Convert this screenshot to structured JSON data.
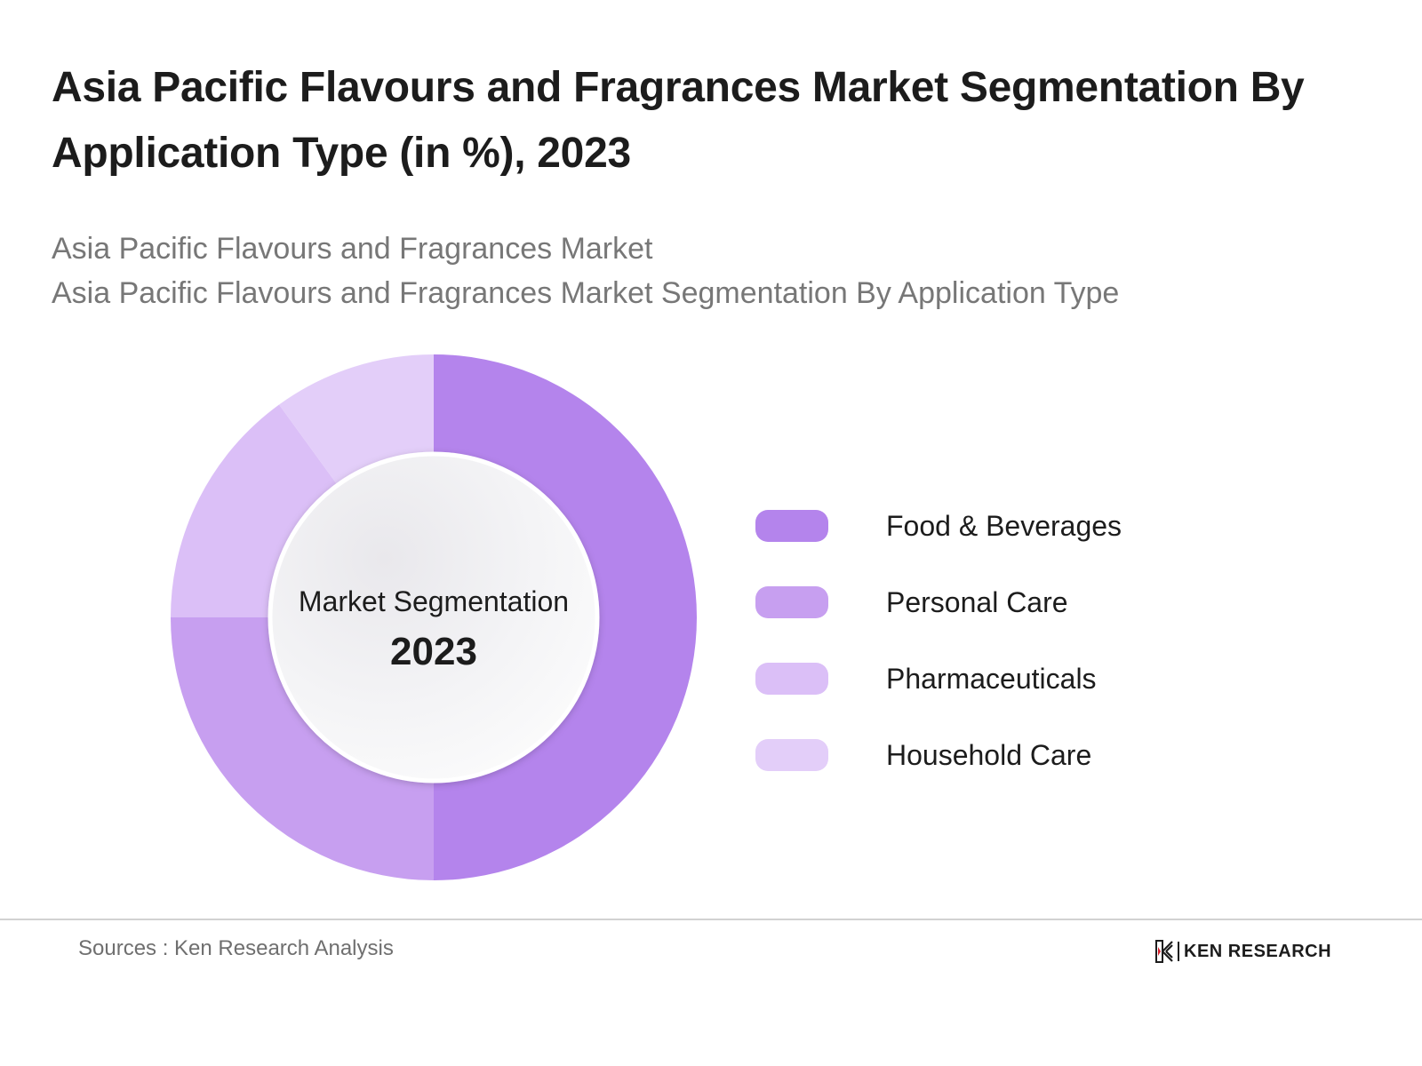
{
  "title": "Asia Pacific Flavours and Fragrances Market Segmentation By Application Type (in %), 2023",
  "subtitle_lines": [
    "Asia Pacific Flavours and Fragrances Market",
    "Asia Pacific Flavours and Fragrances Market Segmentation By Application Type"
  ],
  "center_label": {
    "line1": "Market Segmentation",
    "line2": "2023"
  },
  "colors": {
    "food_beverages": "#b484ec",
    "personal_care": "#c79ff0",
    "pharmaceuticals": "#dbbff7",
    "household_care": "#e3cef9",
    "divider": "#d2d2d2"
  },
  "chart_data": {
    "type": "pie",
    "variant": "donut",
    "categories": [
      "Food & Beverages",
      "Personal Care",
      "Pharmaceuticals",
      "Household Care"
    ],
    "values": [
      50,
      25,
      15,
      10
    ],
    "unit": "%",
    "legend_position": "right"
  },
  "legend": [
    {
      "label": "Food & Beverages",
      "color": "#b484ec"
    },
    {
      "label": "Personal Care",
      "color": "#c79ff0"
    },
    {
      "label": "Pharmaceuticals",
      "color": "#dbbff7"
    },
    {
      "label": "Household Care",
      "color": "#e3cef9"
    }
  ],
  "footer": {
    "source": "Sources : Ken Research Analysis",
    "brand": "KEN RESEARCH"
  }
}
